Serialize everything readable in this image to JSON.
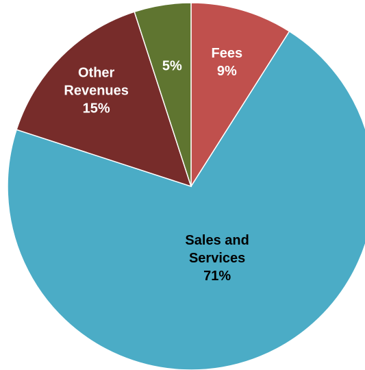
{
  "chart_data": {
    "type": "pie",
    "start_angle_deg": 0,
    "direction": "clockwise",
    "slices": [
      {
        "category": "Fees",
        "value": 9,
        "label_lines": [
          "Fees",
          "9%"
        ],
        "color": "#C0504D",
        "label_color": "#ffffff"
      },
      {
        "category": "Sales and Services",
        "value": 71,
        "label_lines": [
          "Sales and",
          "Services",
          "71%"
        ],
        "color": "#4BACC6",
        "label_color": "#000000"
      },
      {
        "category": "Other Revenues",
        "value": 15,
        "label_lines": [
          "Other",
          "Revenues",
          "15%"
        ],
        "color": "#772C2A",
        "label_color": "#ffffff"
      },
      {
        "category": "",
        "value": 5,
        "label_lines": [
          "5%"
        ],
        "color": "#5F7530",
        "label_color": "#ffffff"
      }
    ]
  }
}
